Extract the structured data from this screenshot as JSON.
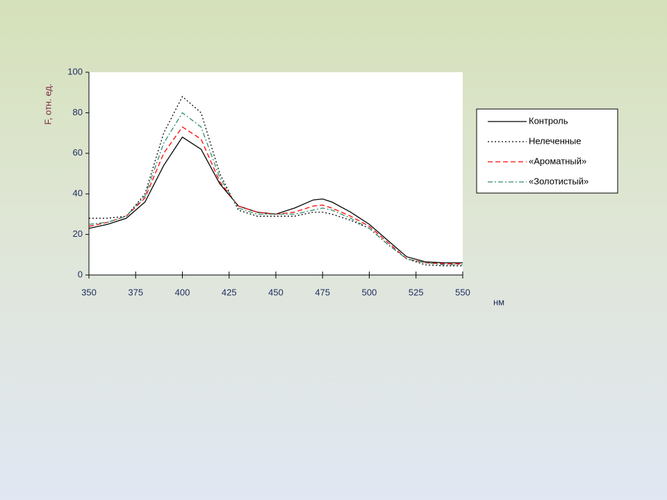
{
  "chart_data": {
    "type": "line",
    "x_label": "нм",
    "y_label": "F, отн. ед.",
    "x": [
      350,
      360,
      370,
      380,
      390,
      400,
      410,
      420,
      430,
      440,
      450,
      460,
      470,
      475,
      480,
      490,
      500,
      510,
      520,
      530,
      540,
      550
    ],
    "series": [
      {
        "name": "Контроль",
        "color": "#000000",
        "dash": "solid",
        "values": [
          23,
          25,
          28,
          36,
          54,
          68,
          62,
          45,
          34,
          31,
          30,
          33,
          37,
          37.5,
          36,
          31,
          25,
          17,
          9,
          6.5,
          6,
          6
        ]
      },
      {
        "name": "Нелеченные",
        "color": "#000000",
        "dash": "dotted",
        "values": [
          28,
          28,
          29,
          40,
          70,
          88,
          80,
          50,
          32,
          29,
          29,
          29,
          31,
          31,
          30,
          27,
          23,
          15,
          8,
          5,
          4.5,
          4.5
        ]
      },
      {
        "name": "«Ароматный»",
        "color": "#ff0000",
        "dash": "dashed",
        "values": [
          24,
          26,
          29,
          38,
          60,
          73,
          67,
          46,
          34,
          31,
          30,
          31,
          34,
          34.5,
          33,
          29,
          24,
          16,
          8,
          6,
          5.5,
          5.5
        ]
      },
      {
        "name": "«Золотистый»",
        "color": "#2e8b6e",
        "dash": "dashdot",
        "values": [
          25,
          26,
          29,
          39,
          65,
          80,
          73,
          48,
          33,
          30,
          30,
          30,
          32,
          33,
          32,
          28,
          23,
          15,
          8,
          6,
          5,
          5
        ]
      }
    ],
    "xlim": [
      350,
      550
    ],
    "xticks": [
      350,
      375,
      400,
      425,
      450,
      475,
      500,
      525,
      550
    ],
    "ylim": [
      0,
      100
    ],
    "yticks": [
      0,
      20,
      40,
      60,
      80,
      100
    ],
    "legend": "right"
  }
}
